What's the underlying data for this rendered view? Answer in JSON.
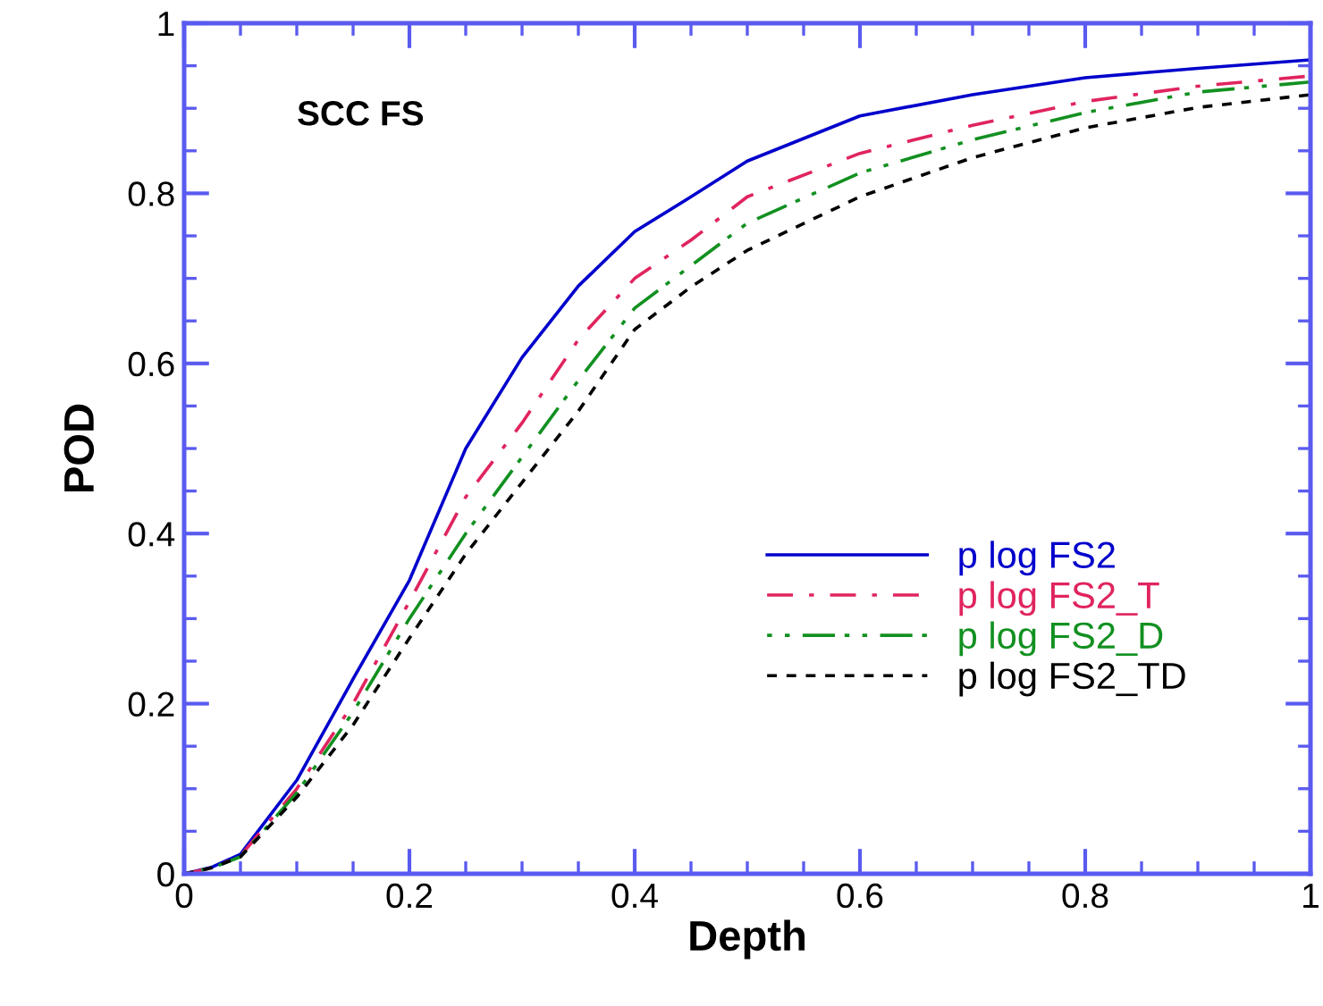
{
  "chart_data": {
    "type": "line",
    "xlabel": "Depth",
    "ylabel": "POD",
    "annotations": [
      "SCC FS"
    ],
    "x": [
      0,
      0.025,
      0.05,
      0.1,
      0.15,
      0.2,
      0.25,
      0.3,
      0.35,
      0.4,
      0.45,
      0.5,
      0.6,
      0.7,
      0.8,
      0.9,
      1.0
    ],
    "series": [
      {
        "name": "p log FS2",
        "color": "#0000cc",
        "line_style": "solid",
        "values": [
          0,
          0.008,
          0.023,
          0.11,
          0.229,
          0.345,
          0.5,
          0.607,
          0.691,
          0.755,
          0.796,
          0.838,
          0.891,
          0.916,
          0.936,
          0.947,
          0.957
        ]
      },
      {
        "name": "p log FS2_T",
        "color": "#e0245e",
        "line_style": "dashdot",
        "values": [
          0,
          0.007,
          0.021,
          0.1,
          0.2,
          0.32,
          0.443,
          0.53,
          0.628,
          0.7,
          0.745,
          0.796,
          0.847,
          0.88,
          0.908,
          0.926,
          0.938
        ]
      },
      {
        "name": "p log FS2_D",
        "color": "#129020",
        "line_style": "dashdotdot",
        "values": [
          0,
          0.007,
          0.02,
          0.095,
          0.19,
          0.3,
          0.4,
          0.49,
          0.58,
          0.665,
          0.715,
          0.765,
          0.824,
          0.863,
          0.895,
          0.919,
          0.931
        ]
      },
      {
        "name": "p log FS2_TD",
        "color": "#000000",
        "line_style": "dashed",
        "values": [
          0,
          0.007,
          0.02,
          0.09,
          0.175,
          0.277,
          0.376,
          0.46,
          0.544,
          0.64,
          0.69,
          0.733,
          0.796,
          0.842,
          0.877,
          0.901,
          0.916
        ]
      }
    ],
    "xlim": [
      0,
      1
    ],
    "ylim": [
      0,
      1
    ],
    "xticks": [
      0,
      0.2,
      0.4,
      0.6,
      0.8,
      1
    ],
    "yticks": [
      0,
      0.2,
      0.4,
      0.6,
      0.8,
      1
    ],
    "legend": "center right",
    "grid": false,
    "marker": "none"
  }
}
